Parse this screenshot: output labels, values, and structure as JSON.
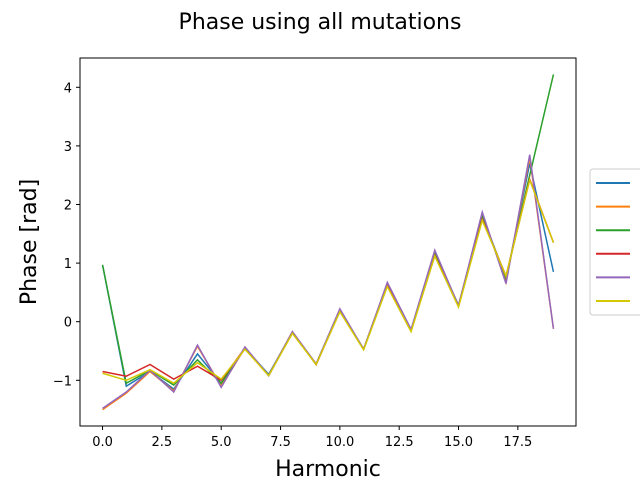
{
  "chart_data": {
    "type": "line",
    "title": "Phase using all mutations",
    "xlabel": "Harmonic",
    "ylabel": "Phase [rad]",
    "xlim": [
      -0.95,
      19.95
    ],
    "ylim": [
      -1.78,
      4.5
    ],
    "x_ticks": [
      0.0,
      2.5,
      5.0,
      7.5,
      10.0,
      12.5,
      15.0,
      17.5
    ],
    "x_tick_labels": [
      "0.0",
      "2.5",
      "5.0",
      "7.5",
      "10.0",
      "12.5",
      "15.0",
      "17.5"
    ],
    "y_ticks": [
      -1,
      0,
      1,
      2,
      3,
      4
    ],
    "y_tick_labels": [
      "−1",
      "0",
      "1",
      "2",
      "3",
      "4"
    ],
    "grid": false,
    "legend": {
      "placement": "right",
      "entries_labeled": false
    },
    "x": [
      0,
      1,
      2,
      3,
      4,
      5,
      6,
      7,
      8,
      9,
      10,
      11,
      12,
      13,
      14,
      15,
      16,
      17,
      18,
      19
    ],
    "series": [
      {
        "color": "#1f77b4",
        "values": [
          0.97,
          -1.1,
          -0.85,
          -1.15,
          -0.55,
          -1.05,
          -0.45,
          -0.9,
          -0.18,
          -0.72,
          0.2,
          -0.47,
          0.65,
          -0.15,
          1.18,
          0.28,
          1.82,
          0.72,
          2.7,
          0.85
        ]
      },
      {
        "color": "#ff7f0e",
        "values": [
          -1.5,
          -1.22,
          -0.85,
          -1.18,
          -0.42,
          -1.1,
          -0.45,
          -0.92,
          -0.17,
          -0.73,
          0.2,
          -0.47,
          0.65,
          -0.15,
          1.2,
          0.27,
          1.85,
          0.67,
          2.8,
          -0.12
        ]
      },
      {
        "color": "#2ca02c",
        "values": [
          0.97,
          -1.05,
          -0.83,
          -1.08,
          -0.65,
          -1.05,
          -0.45,
          -0.92,
          -0.18,
          -0.73,
          0.2,
          -0.47,
          0.63,
          -0.15,
          1.17,
          0.27,
          1.8,
          0.75,
          2.5,
          4.22
        ]
      },
      {
        "color": "#d62728",
        "values": [
          -0.85,
          -0.93,
          -0.73,
          -0.98,
          -0.76,
          -1.0,
          -0.45,
          -0.92,
          -0.18,
          -0.73,
          0.18,
          -0.47,
          0.62,
          -0.15,
          1.13,
          0.27,
          1.75,
          0.78,
          2.43,
          1.35
        ]
      },
      {
        "color": "#9467bd",
        "values": [
          -1.48,
          -1.2,
          -0.83,
          -1.2,
          -0.4,
          -1.12,
          -0.43,
          -0.92,
          -0.17,
          -0.72,
          0.22,
          -0.47,
          0.67,
          -0.13,
          1.22,
          0.27,
          1.87,
          0.65,
          2.85,
          -0.12
        ]
      },
      {
        "color": "#d4c800",
        "values": [
          -0.88,
          -1.0,
          -0.82,
          -1.05,
          -0.7,
          -0.98,
          -0.47,
          -0.92,
          -0.2,
          -0.73,
          0.17,
          -0.48,
          0.6,
          -0.17,
          1.12,
          0.25,
          1.73,
          0.78,
          2.42,
          1.35
        ]
      }
    ]
  }
}
